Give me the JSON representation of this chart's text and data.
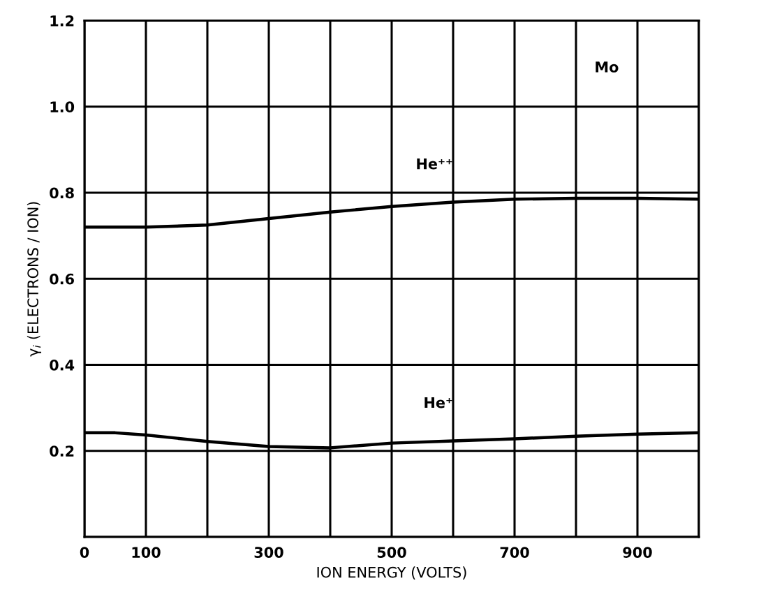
{
  "chart_data": {
    "type": "line",
    "xlabel": "ION ENERGY (VOLTS)",
    "ylabel": "γ$_{i}$ (ELECTRONS / ION)",
    "x": [
      0,
      50,
      100,
      200,
      300,
      400,
      500,
      600,
      700,
      800,
      900,
      1000
    ],
    "series": [
      {
        "name": "He⁺⁺",
        "color": "#000000",
        "values": [
          0.72,
          0.72,
          0.72,
          0.725,
          0.74,
          0.755,
          0.768,
          0.778,
          0.785,
          0.787,
          0.787,
          0.785
        ]
      },
      {
        "name": "He⁺",
        "color": "#000000",
        "values": [
          0.242,
          0.242,
          0.237,
          0.222,
          0.21,
          0.207,
          0.218,
          0.223,
          0.228,
          0.234,
          0.239,
          0.242
        ]
      }
    ],
    "annotations": [
      "Mo"
    ],
    "xlim": [
      0,
      1000
    ],
    "ylim": [
      0,
      1.2
    ],
    "xticks": [
      0,
      100,
      {
        "value": 200,
        "label": null
      },
      300,
      {
        "value": 400,
        "label": null
      },
      500,
      {
        "value": 600,
        "label": null
      },
      700,
      {
        "value": 800,
        "label": null
      },
      900,
      {
        "value": 1000,
        "label": null
      }
    ],
    "yticks": [
      {
        "value": 0,
        "label": null
      },
      {
        "value": 0.2,
        "label": "0.2"
      },
      {
        "value": 0.4,
        "label": "0.4"
      },
      {
        "value": 0.6,
        "label": "0.6"
      },
      {
        "value": 0.8,
        "label": "0.8"
      },
      {
        "value": 1.0,
        "label": "1.0"
      },
      {
        "value": 1.2,
        "label": "1.2"
      }
    ],
    "grid": true,
    "marker": "none",
    "line_style": "solid"
  }
}
